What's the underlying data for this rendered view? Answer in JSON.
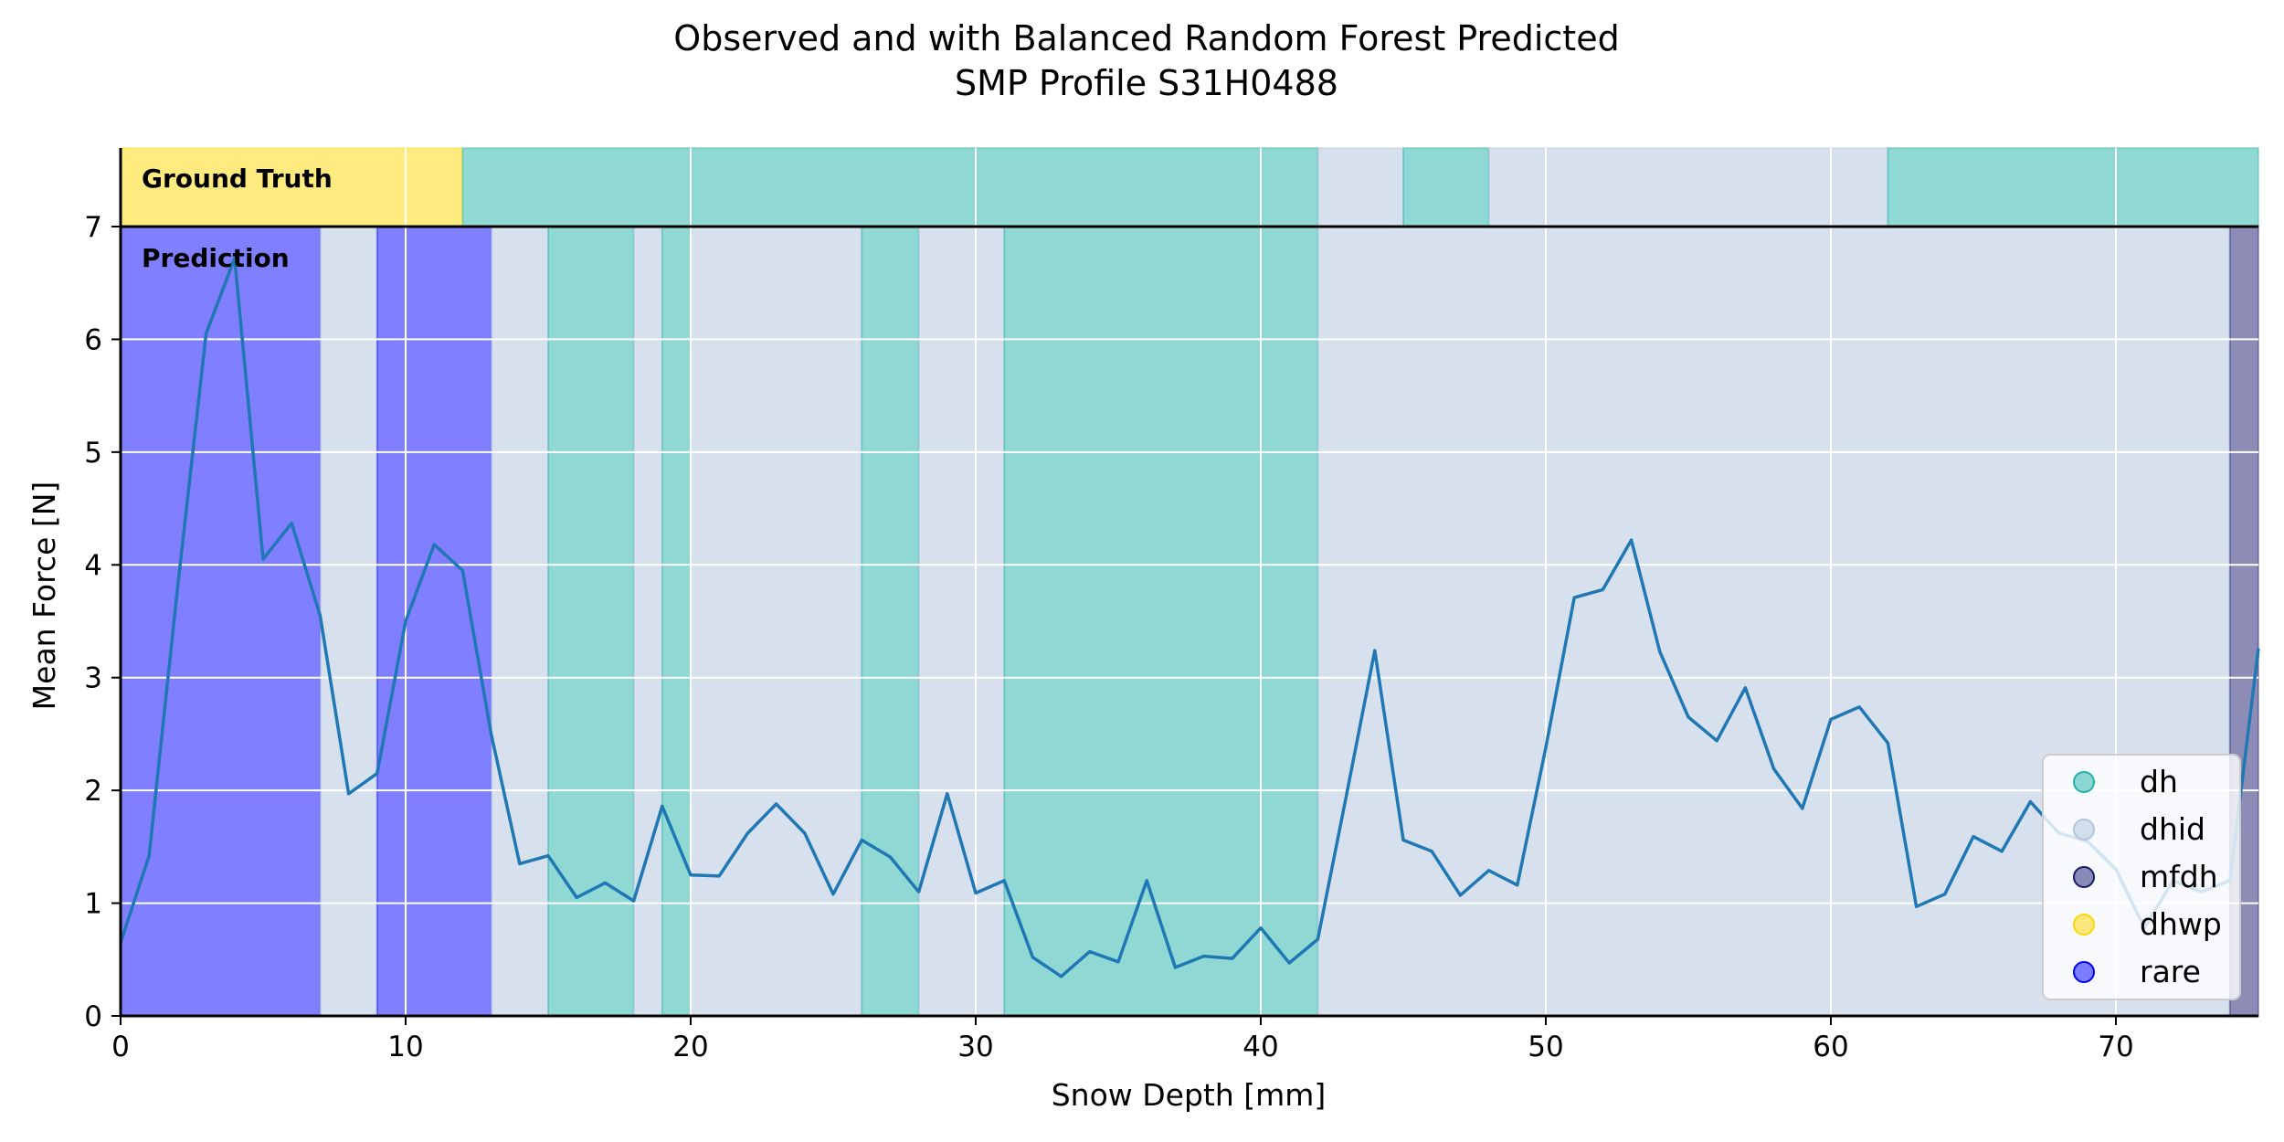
{
  "chart_data": {
    "type": "line",
    "title": "Observed and with Balanced Random Forest Predicted",
    "subtitle": "SMP Profile S31H0488",
    "xlabel": "Snow Depth [mm]",
    "ylabel": "Mean Force [N]",
    "xlim": [
      0,
      75
    ],
    "ylim": [
      0,
      7
    ],
    "xticks": [
      0,
      10,
      20,
      30,
      40,
      50,
      60,
      70
    ],
    "yticks": [
      0,
      1,
      2,
      3,
      4,
      5,
      6,
      7
    ],
    "grid": true,
    "legend_position": "lower-right",
    "ground_truth_label": "Ground Truth",
    "prediction_label": "Prediction",
    "series": [
      {
        "x": [
          0,
          1,
          2,
          3,
          4,
          5,
          6,
          7,
          8,
          9,
          10,
          11,
          12,
          13,
          14,
          15,
          16,
          17,
          18,
          19,
          20,
          21,
          22,
          23,
          24,
          25,
          26,
          27,
          28,
          29,
          30,
          31,
          32,
          33,
          34,
          35,
          36,
          37,
          38,
          39,
          40,
          41,
          42,
          43,
          44,
          45,
          46,
          47,
          48,
          49,
          50,
          51,
          52,
          53,
          54,
          55,
          56,
          57,
          58,
          59,
          60,
          61,
          62,
          63,
          64,
          65,
          66,
          67,
          68,
          69,
          70,
          71,
          72,
          73,
          74,
          75
        ],
        "y": [
          0.65,
          1.42,
          3.8,
          6.05,
          6.72,
          4.05,
          4.37,
          3.55,
          1.97,
          2.15,
          3.5,
          4.18,
          3.95,
          2.5,
          1.35,
          1.42,
          1.05,
          1.18,
          1.02,
          1.86,
          1.25,
          1.24,
          1.62,
          1.88,
          1.62,
          1.08,
          1.56,
          1.41,
          1.1,
          1.97,
          1.09,
          1.2,
          0.52,
          0.35,
          0.57,
          0.48,
          1.2,
          0.43,
          0.53,
          0.51,
          0.78,
          0.47,
          0.68,
          1.95,
          3.24,
          1.56,
          1.46,
          1.07,
          1.29,
          1.16,
          2.38,
          3.71,
          3.78,
          4.22,
          3.23,
          2.65,
          2.44,
          2.91,
          2.19,
          1.84,
          2.63,
          2.74,
          2.42,
          0.97,
          1.08,
          1.59,
          1.46,
          1.9,
          1.62,
          1.55,
          1.3,
          0.78,
          1.2,
          1.1,
          1.2,
          3.26
        ],
        "color": "#1f77b4"
      }
    ],
    "classes": [
      {
        "name": "dh",
        "color": "#20b2aa"
      },
      {
        "name": "dhid",
        "color": "#b0c4de"
      },
      {
        "name": "mfdh",
        "color": "#191970"
      },
      {
        "name": "dhwp",
        "color": "#ffd700"
      },
      {
        "name": "rare",
        "color": "#0000ff"
      }
    ],
    "ground_truth_segments": [
      {
        "start": 0,
        "end": 12,
        "class": "dhwp"
      },
      {
        "start": 12,
        "end": 42,
        "class": "dh"
      },
      {
        "start": 42,
        "end": 45,
        "class": "dhid"
      },
      {
        "start": 45,
        "end": 48,
        "class": "dh"
      },
      {
        "start": 48,
        "end": 62,
        "class": "dhid"
      },
      {
        "start": 62,
        "end": 75,
        "class": "dh"
      }
    ],
    "prediction_segments": [
      {
        "start": 0,
        "end": 7,
        "class": "rare"
      },
      {
        "start": 7,
        "end": 9,
        "class": "dhid"
      },
      {
        "start": 9,
        "end": 13,
        "class": "rare"
      },
      {
        "start": 13,
        "end": 15,
        "class": "dhid"
      },
      {
        "start": 15,
        "end": 18,
        "class": "dh"
      },
      {
        "start": 18,
        "end": 19,
        "class": "dhid"
      },
      {
        "start": 19,
        "end": 20,
        "class": "dh"
      },
      {
        "start": 20,
        "end": 26,
        "class": "dhid"
      },
      {
        "start": 26,
        "end": 28,
        "class": "dh"
      },
      {
        "start": 28,
        "end": 31,
        "class": "dhid"
      },
      {
        "start": 31,
        "end": 42,
        "class": "dh"
      },
      {
        "start": 42,
        "end": 74,
        "class": "dhid"
      },
      {
        "start": 74,
        "end": 75,
        "class": "mfdh"
      }
    ]
  }
}
